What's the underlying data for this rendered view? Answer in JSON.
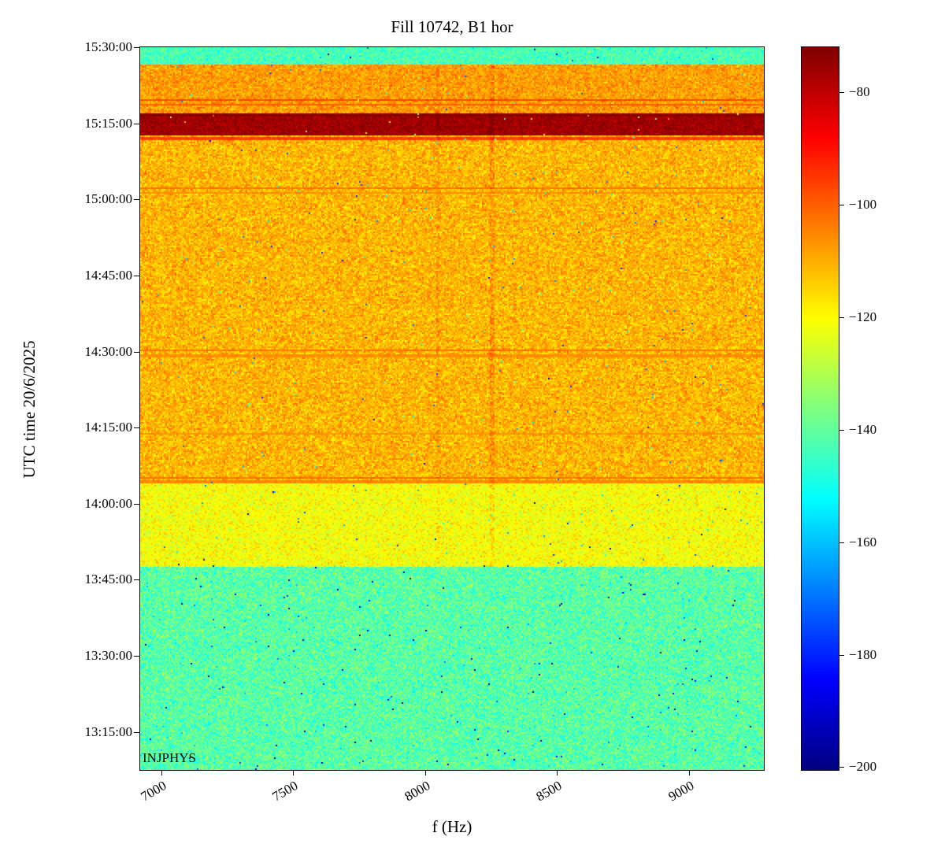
{
  "chart_data": {
    "type": "heatmap",
    "title": "Fill 10742, B1 hor",
    "xlabel": "f (Hz)",
    "ylabel": "UTC time 20/6/2025",
    "annotation": "INJPHYS",
    "colormap": "jet",
    "x_range": [
      6920,
      9285
    ],
    "x_ticks": [
      7000,
      7500,
      8000,
      8500,
      9000
    ],
    "y_min": "13:07:30",
    "y_max": "15:30:00",
    "y_ticks": [
      "15:30:00",
      "15:15:00",
      "15:00:00",
      "14:45:00",
      "14:30:00",
      "14:15:00",
      "14:00:00",
      "13:45:00",
      "13:30:00",
      "13:15:00"
    ],
    "value_range": [
      -200.5,
      -72
    ],
    "colorbar_ticks": [
      -80,
      -100,
      -120,
      -140,
      -160,
      -180,
      -200
    ],
    "bands": [
      {
        "t_start": "13:07:30",
        "t_end": "13:47:30",
        "mean_db": -141,
        "sigma_db": 5
      },
      {
        "t_start": "13:47:30",
        "t_end": "14:04:00",
        "mean_db": -121,
        "sigma_db": 4
      },
      {
        "t_start": "14:04:00",
        "t_end": "15:12:40",
        "mean_db": -111,
        "sigma_db": 4.5
      },
      {
        "t_start": "15:12:40",
        "t_end": "15:16:50",
        "mean_db": -76,
        "sigma_db": 2.5
      },
      {
        "t_start": "15:16:50",
        "t_end": "15:26:40",
        "mean_db": -108,
        "sigma_db": 4
      },
      {
        "t_start": "15:26:40",
        "t_end": "15:30:00",
        "mean_db": -143,
        "sigma_db": 4
      }
    ],
    "h_lines": [
      {
        "time": "15:19:40",
        "db": -97
      },
      {
        "time": "15:18:40",
        "db": -100
      },
      {
        "time": "15:16:40",
        "db": -73.5
      },
      {
        "time": "15:12:50",
        "db": -74
      },
      {
        "time": "15:12:00",
        "db": -96
      },
      {
        "time": "15:02:10",
        "db": -103
      },
      {
        "time": "15:01:20",
        "db": -106
      },
      {
        "time": "14:30:10",
        "db": -103
      },
      {
        "time": "14:29:10",
        "db": -106
      },
      {
        "time": "14:13:40",
        "db": -106
      },
      {
        "time": "14:05:10",
        "db": -102
      },
      {
        "time": "14:04:20",
        "db": -105
      }
    ],
    "v_lines": [
      {
        "f": 8050,
        "delta_db": 3,
        "width": 14
      },
      {
        "f": 8255,
        "delta_db": 4,
        "width": 14
      }
    ]
  }
}
